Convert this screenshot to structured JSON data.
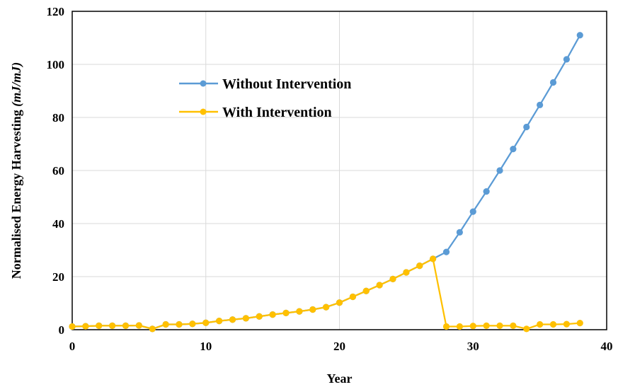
{
  "chart_data": {
    "type": "line",
    "title": "",
    "xlabel": "Year",
    "ylabel": "Normalised Energy Harvesting (mJ/mJ)",
    "ylabel_main": "Normalised Energy Harvesting ",
    "ylabel_unit": "(mJ/mJ)",
    "xlim": [
      0,
      40
    ],
    "ylim": [
      0,
      120
    ],
    "x_ticks": [
      0,
      10,
      20,
      30,
      40
    ],
    "y_ticks": [
      0,
      20,
      40,
      60,
      80,
      100,
      120
    ],
    "grid": true,
    "legend_position": "upper-left-inside",
    "series": [
      {
        "name": "Without Intervention",
        "color": "#5b9bd5",
        "x": [
          0,
          1,
          2,
          3,
          4,
          5,
          6,
          7,
          8,
          9,
          10,
          11,
          12,
          13,
          14,
          15,
          16,
          17,
          18,
          19,
          20,
          21,
          22,
          23,
          24,
          25,
          26,
          27,
          28,
          29,
          30,
          31,
          32,
          33,
          34,
          35,
          36,
          37,
          38
        ],
        "y": [
          1.2,
          1.3,
          1.5,
          1.5,
          1.5,
          1.6,
          0.3,
          2.0,
          2.0,
          2.2,
          2.6,
          3.3,
          3.8,
          4.3,
          5.0,
          5.7,
          6.3,
          6.9,
          7.6,
          8.5,
          10.2,
          12.4,
          14.6,
          16.8,
          19.1,
          21.6,
          24.1,
          26.7,
          29.3,
          36.7,
          44.5,
          52.1,
          60.0,
          68.1,
          76.4,
          84.7,
          93.2,
          101.9,
          111.0
        ]
      },
      {
        "name": "With Intervention",
        "color": "#ffc000",
        "x": [
          0,
          1,
          2,
          3,
          4,
          5,
          6,
          7,
          8,
          9,
          10,
          11,
          12,
          13,
          14,
          15,
          16,
          17,
          18,
          19,
          20,
          21,
          22,
          23,
          24,
          25,
          26,
          27,
          28,
          29,
          30,
          31,
          32,
          33,
          34,
          35,
          36,
          37,
          38
        ],
        "y": [
          1.2,
          1.3,
          1.5,
          1.5,
          1.5,
          1.6,
          0.3,
          2.0,
          2.0,
          2.2,
          2.6,
          3.3,
          3.8,
          4.3,
          5.0,
          5.7,
          6.3,
          6.9,
          7.6,
          8.5,
          10.2,
          12.4,
          14.6,
          16.8,
          19.1,
          21.6,
          24.1,
          26.7,
          1.2,
          1.2,
          1.4,
          1.5,
          1.5,
          1.5,
          0.3,
          2.0,
          2.0,
          2.1,
          2.5
        ]
      }
    ]
  }
}
